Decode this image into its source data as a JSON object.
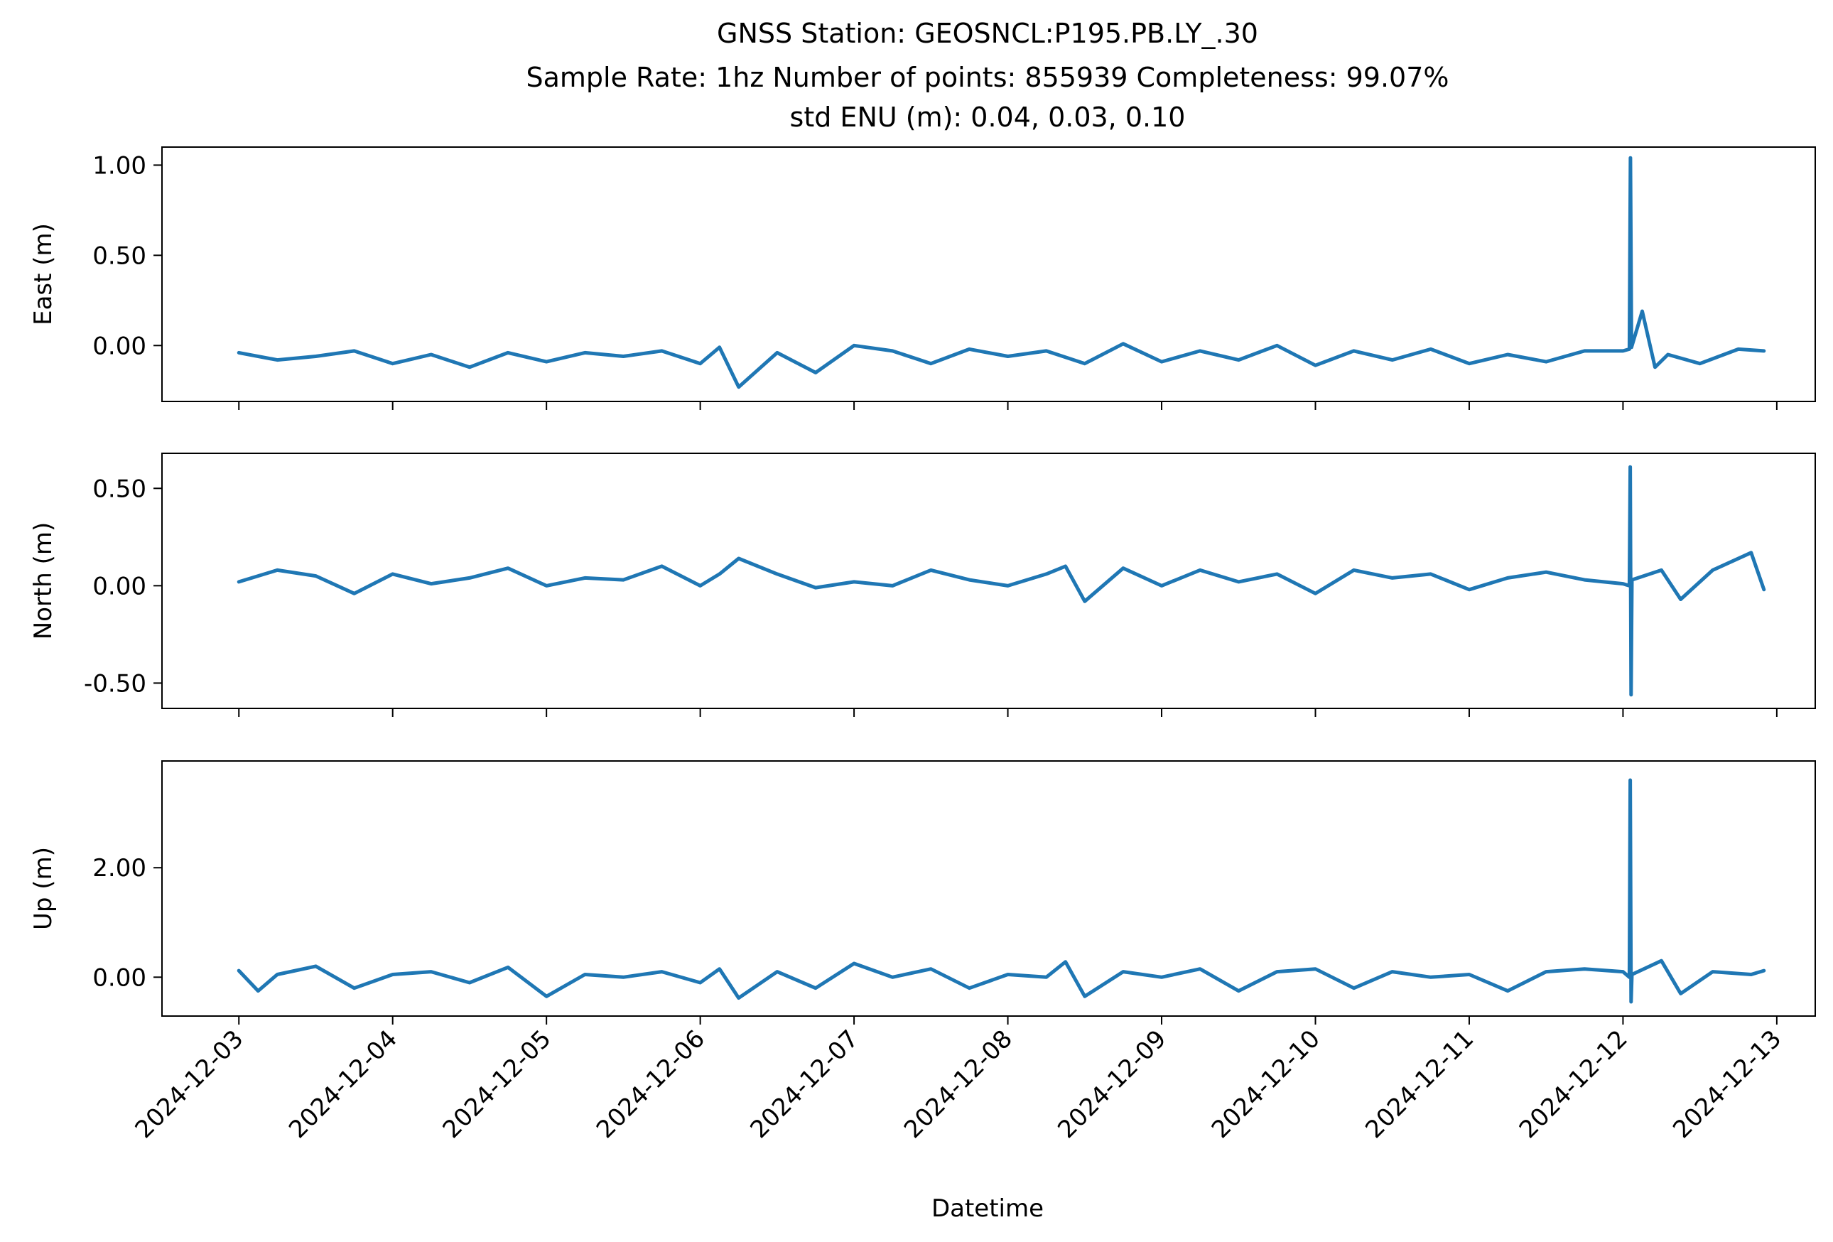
{
  "figure": {
    "title_lines": [
      "GNSS Station: GEOSNCL:P195.PB.LY_.30",
      "Sample Rate: 1hz   Number of points: 855939    Completeness:  99.07%",
      "std ENU (m):  0.04, 0.03, 0.10"
    ],
    "xlabel": "Datetime",
    "line_color": "#1f77b4"
  },
  "chart_data": [
    {
      "type": "line",
      "ylabel": "East (m)",
      "ylim": [
        -0.31,
        1.1
      ],
      "yticks": [
        0.0,
        0.5,
        1.0
      ],
      "ytick_labels": [
        "0.00",
        "0.50",
        "1.00"
      ],
      "xlim": [
        "2024-12-02T12:00",
        "2024-12-13T06:00"
      ],
      "x_tick_labels_shown": false,
      "grid": false,
      "series": [
        {
          "x": [
            "2024-12-03T00:00",
            "2024-12-03T06:00",
            "2024-12-03T12:00",
            "2024-12-03T18:00",
            "2024-12-04T00:00",
            "2024-12-04T06:00",
            "2024-12-04T12:00",
            "2024-12-04T18:00",
            "2024-12-05T00:00",
            "2024-12-05T06:00",
            "2024-12-05T12:00",
            "2024-12-05T18:00",
            "2024-12-06T00:00",
            "2024-12-06T03:00",
            "2024-12-06T06:00",
            "2024-12-06T12:00",
            "2024-12-06T18:00",
            "2024-12-07T00:00",
            "2024-12-07T06:00",
            "2024-12-07T12:00",
            "2024-12-07T18:00",
            "2024-12-08T00:00",
            "2024-12-08T06:00",
            "2024-12-08T12:00",
            "2024-12-08T18:00",
            "2024-12-09T00:00",
            "2024-12-09T06:00",
            "2024-12-09T12:00",
            "2024-12-09T18:00",
            "2024-12-10T00:00",
            "2024-12-10T06:00",
            "2024-12-10T12:00",
            "2024-12-10T18:00",
            "2024-12-11T00:00",
            "2024-12-11T06:00",
            "2024-12-11T12:00",
            "2024-12-11T18:00",
            "2024-12-12T00:00",
            "2024-12-12T01:00",
            "2024-12-12T01:10",
            "2024-12-12T01:20",
            "2024-12-12T03:00",
            "2024-12-12T05:00",
            "2024-12-12T07:00",
            "2024-12-12T12:00",
            "2024-12-12T18:00",
            "2024-12-12T22:00"
          ],
          "values": [
            -0.04,
            -0.08,
            -0.06,
            -0.03,
            -0.1,
            -0.05,
            -0.12,
            -0.04,
            -0.09,
            -0.04,
            -0.06,
            -0.03,
            -0.1,
            -0.01,
            -0.23,
            -0.04,
            -0.15,
            0.0,
            -0.03,
            -0.1,
            -0.02,
            -0.06,
            -0.03,
            -0.1,
            0.01,
            -0.09,
            -0.03,
            -0.08,
            0.0,
            -0.11,
            -0.03,
            -0.08,
            -0.02,
            -0.1,
            -0.05,
            -0.09,
            -0.03,
            -0.03,
            -0.02,
            1.04,
            -0.01,
            0.19,
            -0.12,
            -0.05,
            -0.1,
            -0.02,
            -0.03
          ]
        }
      ]
    },
    {
      "type": "line",
      "ylabel": "North (m)",
      "ylim": [
        -0.63,
        0.68
      ],
      "yticks": [
        -0.5,
        0.0,
        0.5
      ],
      "ytick_labels": [
        "-0.50",
        "0.00",
        "0.50"
      ],
      "xlim": [
        "2024-12-02T12:00",
        "2024-12-13T06:00"
      ],
      "x_tick_labels_shown": false,
      "grid": false,
      "series": [
        {
          "x": [
            "2024-12-03T00:00",
            "2024-12-03T06:00",
            "2024-12-03T12:00",
            "2024-12-03T18:00",
            "2024-12-04T00:00",
            "2024-12-04T06:00",
            "2024-12-04T12:00",
            "2024-12-04T18:00",
            "2024-12-05T00:00",
            "2024-12-05T06:00",
            "2024-12-05T12:00",
            "2024-12-05T18:00",
            "2024-12-06T00:00",
            "2024-12-06T03:00",
            "2024-12-06T06:00",
            "2024-12-06T12:00",
            "2024-12-06T18:00",
            "2024-12-07T00:00",
            "2024-12-07T06:00",
            "2024-12-07T12:00",
            "2024-12-07T18:00",
            "2024-12-08T00:00",
            "2024-12-08T06:00",
            "2024-12-08T09:00",
            "2024-12-08T12:00",
            "2024-12-08T18:00",
            "2024-12-09T00:00",
            "2024-12-09T06:00",
            "2024-12-09T12:00",
            "2024-12-09T18:00",
            "2024-12-10T00:00",
            "2024-12-10T06:00",
            "2024-12-10T12:00",
            "2024-12-10T18:00",
            "2024-12-11T00:00",
            "2024-12-11T06:00",
            "2024-12-11T12:00",
            "2024-12-11T18:00",
            "2024-12-12T00:00",
            "2024-12-12T01:00",
            "2024-12-12T01:08",
            "2024-12-12T01:16",
            "2024-12-12T01:24",
            "2024-12-12T06:00",
            "2024-12-12T09:00",
            "2024-12-12T14:00",
            "2024-12-12T20:00",
            "2024-12-12T22:00"
          ],
          "values": [
            0.02,
            0.08,
            0.05,
            -0.04,
            0.06,
            0.01,
            0.04,
            0.09,
            0.0,
            0.04,
            0.03,
            0.1,
            0.0,
            0.06,
            0.14,
            0.06,
            -0.01,
            0.02,
            0.0,
            0.08,
            0.03,
            0.0,
            0.06,
            0.1,
            -0.08,
            0.09,
            0.0,
            0.08,
            0.02,
            0.06,
            -0.04,
            0.08,
            0.04,
            0.06,
            -0.02,
            0.04,
            0.07,
            0.03,
            0.01,
            0.0,
            0.61,
            -0.56,
            0.03,
            0.08,
            -0.07,
            0.08,
            0.17,
            -0.02
          ]
        }
      ]
    },
    {
      "type": "line",
      "ylabel": "Up (m)",
      "ylim": [
        -0.71,
        3.95
      ],
      "yticks": [
        0.0,
        2.0
      ],
      "ytick_labels": [
        "0.00",
        "2.00"
      ],
      "xlim": [
        "2024-12-02T12:00",
        "2024-12-13T06:00"
      ],
      "x_tick_labels": [
        "2024-12-03",
        "2024-12-04",
        "2024-12-05",
        "2024-12-06",
        "2024-12-07",
        "2024-12-08",
        "2024-12-09",
        "2024-12-10",
        "2024-12-11",
        "2024-12-12",
        "2024-12-13"
      ],
      "xlabel": "Datetime",
      "grid": false,
      "series": [
        {
          "x": [
            "2024-12-03T00:00",
            "2024-12-03T03:00",
            "2024-12-03T06:00",
            "2024-12-03T12:00",
            "2024-12-03T18:00",
            "2024-12-04T00:00",
            "2024-12-04T06:00",
            "2024-12-04T12:00",
            "2024-12-04T18:00",
            "2024-12-05T00:00",
            "2024-12-05T06:00",
            "2024-12-05T12:00",
            "2024-12-05T18:00",
            "2024-12-06T00:00",
            "2024-12-06T03:00",
            "2024-12-06T06:00",
            "2024-12-06T12:00",
            "2024-12-06T18:00",
            "2024-12-07T00:00",
            "2024-12-07T06:00",
            "2024-12-07T12:00",
            "2024-12-07T18:00",
            "2024-12-08T00:00",
            "2024-12-08T06:00",
            "2024-12-08T09:00",
            "2024-12-08T12:00",
            "2024-12-08T18:00",
            "2024-12-09T00:00",
            "2024-12-09T06:00",
            "2024-12-09T12:00",
            "2024-12-09T18:00",
            "2024-12-10T00:00",
            "2024-12-10T06:00",
            "2024-12-10T12:00",
            "2024-12-10T18:00",
            "2024-12-11T00:00",
            "2024-12-11T06:00",
            "2024-12-11T12:00",
            "2024-12-11T18:00",
            "2024-12-12T00:00",
            "2024-12-12T01:00",
            "2024-12-12T01:08",
            "2024-12-12T01:16",
            "2024-12-12T01:24",
            "2024-12-12T06:00",
            "2024-12-12T09:00",
            "2024-12-12T14:00",
            "2024-12-12T20:00",
            "2024-12-12T22:00"
          ],
          "values": [
            0.12,
            -0.25,
            0.05,
            0.2,
            -0.2,
            0.05,
            0.1,
            -0.1,
            0.18,
            -0.35,
            0.05,
            0.0,
            0.1,
            -0.1,
            0.15,
            -0.38,
            0.1,
            -0.2,
            0.25,
            0.0,
            0.15,
            -0.2,
            0.05,
            0.0,
            0.28,
            -0.35,
            0.1,
            0.0,
            0.15,
            -0.25,
            0.1,
            0.15,
            -0.2,
            0.1,
            0.0,
            0.05,
            -0.25,
            0.1,
            0.15,
            0.1,
            0.0,
            3.6,
            -0.45,
            0.05,
            0.3,
            -0.3,
            0.1,
            0.05,
            0.12
          ]
        }
      ]
    }
  ]
}
